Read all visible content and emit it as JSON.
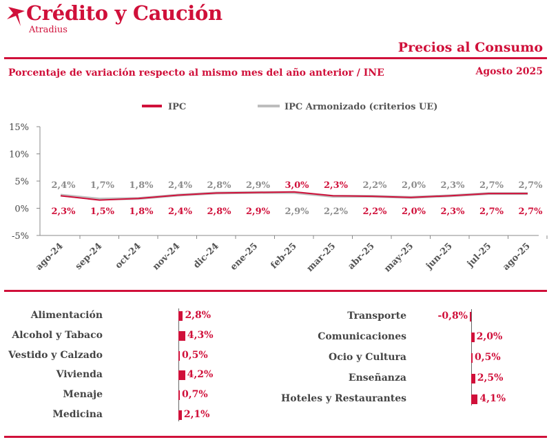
{
  "header": {
    "brand_name": "Crédito y Caución",
    "brand_sub": "Atradius",
    "report_title": "Precios al Consumo",
    "subtitle": "Porcentaje de variación respecto al mismo mes del año anterior / INE",
    "date": "Agosto  2025",
    "brand_color": "#d0103a"
  },
  "chart_data": [
    {
      "type": "line",
      "categories": [
        "ago-24",
        "sep-24",
        "oct-24",
        "nov-24",
        "dic-24",
        "ene-25",
        "feb-25",
        "mar-25",
        "abr-25",
        "may-25",
        "jun-25",
        "jul-25",
        "ago-25"
      ],
      "series": [
        {
          "name": "IPC",
          "color": "#d0103a",
          "values": [
            2.3,
            1.5,
            1.8,
            2.4,
            2.8,
            2.9,
            3.0,
            2.3,
            2.2,
            2.0,
            2.3,
            2.7,
            2.7
          ],
          "labels": [
            "2,3%",
            "1,5%",
            "1,8%",
            "2,4%",
            "2,8%",
            "2,9%",
            "3,0%",
            "2,3%",
            "2,2%",
            "2,0%",
            "2,3%",
            "2,7%",
            "2,7%"
          ]
        },
        {
          "name": "IPC Armonizado (criterios UE)",
          "color": "#bdbdbd",
          "values": [
            2.4,
            1.7,
            1.8,
            2.4,
            2.8,
            2.9,
            2.9,
            2.2,
            2.2,
            2.0,
            2.3,
            2.7,
            2.7
          ],
          "labels": [
            "2,4%",
            "1,7%",
            "1,8%",
            "2,4%",
            "2,8%",
            "2,9%",
            "2,9%",
            "2,2%",
            "2,2%",
            "2,0%",
            "2,3%",
            "2,7%",
            "2,7%"
          ]
        }
      ],
      "yticks": [
        "15%",
        "10%",
        "5%",
        "0%",
        "-5%"
      ],
      "ylim": [
        -5,
        15
      ],
      "grid": false,
      "legend": "top"
    },
    {
      "type": "bar",
      "orientation": "horizontal",
      "categories": [
        "Alimentación",
        "Alcohol y Tabaco",
        "Vestido y Calzado",
        "Vivienda",
        "Menaje",
        "Medicina"
      ],
      "values": [
        2.8,
        4.3,
        0.5,
        4.2,
        0.7,
        2.1
      ],
      "labels": [
        "2,8%",
        "4,3%",
        "0,5%",
        "4,2%",
        "0,7%",
        "2,1%"
      ]
    },
    {
      "type": "bar",
      "orientation": "horizontal",
      "categories": [
        "Transporte",
        "Comunicaciones",
        "Ocio y Cultura",
        "Enseñanza",
        "Hoteles y Restaurantes"
      ],
      "values": [
        -0.8,
        2.0,
        0.5,
        2.5,
        4.1
      ],
      "labels": [
        "-0,8%",
        "2,0%",
        "0,5%",
        "2,5%",
        "4,1%"
      ]
    }
  ]
}
